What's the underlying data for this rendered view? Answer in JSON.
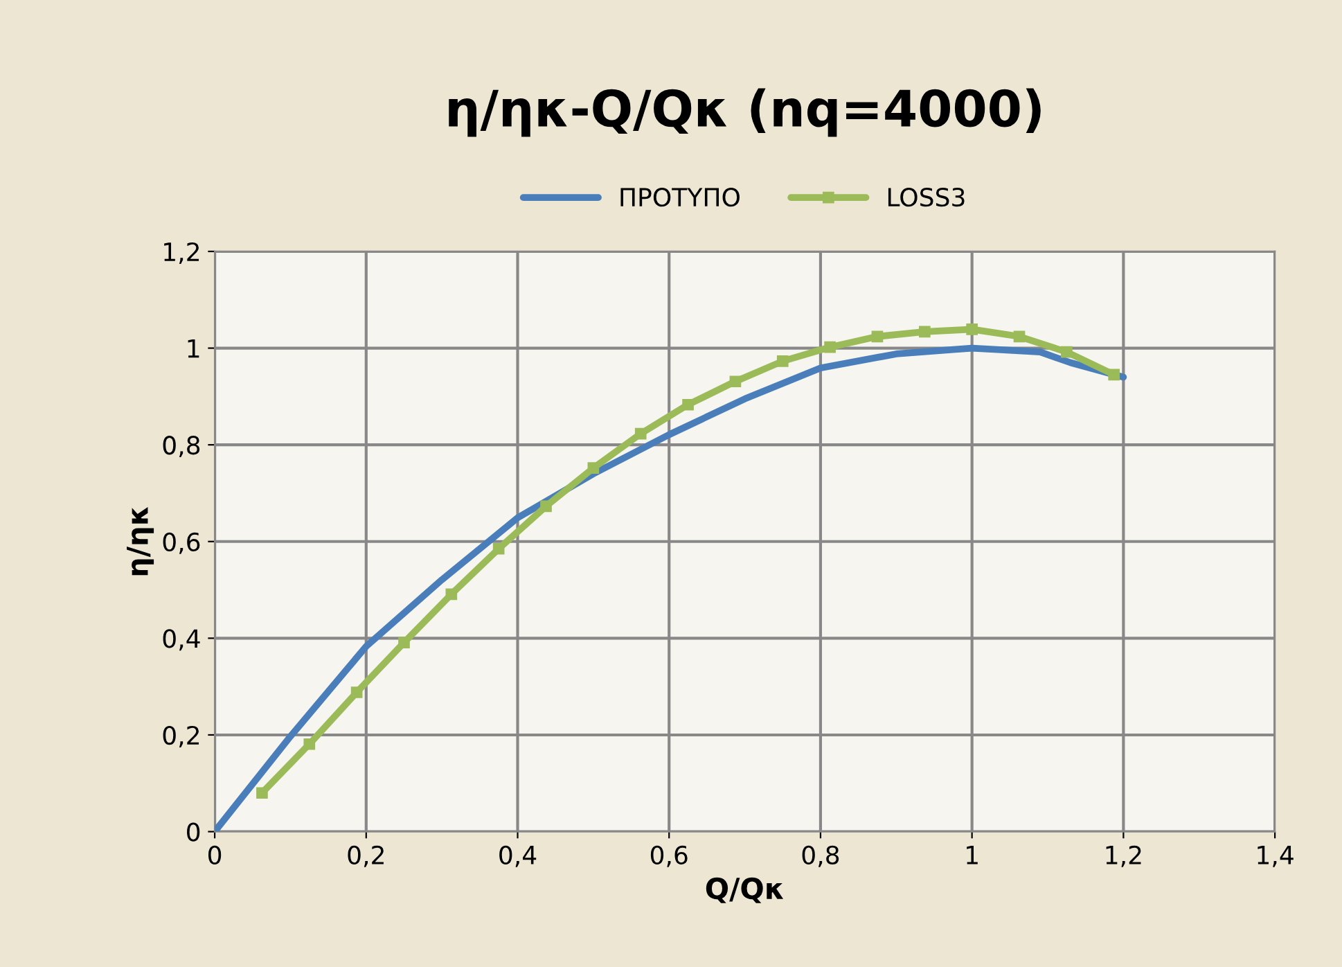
{
  "chart_data": {
    "type": "line",
    "title": "η/ηκ-Q/Qκ (nq=4000)",
    "xlabel": "Q/Qκ",
    "ylabel": "η/ηκ",
    "xlim": [
      0,
      1.4
    ],
    "ylim": [
      0,
      1.2
    ],
    "xticks": [
      0,
      {
        "value": 0.2,
        "label": "0,2"
      },
      {
        "value": 0.4,
        "label": "0,4"
      },
      {
        "value": 0.6,
        "label": "0,6"
      },
      {
        "value": 0.8,
        "label": "0,8"
      },
      1,
      {
        "value": 1.2,
        "label": "1,2"
      },
      {
        "value": 1.4,
        "label": "1,4"
      }
    ],
    "yticks": [
      0,
      {
        "value": 0.2,
        "label": "0,2"
      },
      {
        "value": 0.4,
        "label": "0,4"
      },
      {
        "value": 0.6,
        "label": "0,6"
      },
      {
        "value": 0.8,
        "label": "0,8"
      },
      1,
      {
        "value": 1.2,
        "label": "1,2"
      }
    ],
    "grid": true,
    "legend": "top",
    "series": [
      {
        "name": "ΠΡΟΤΥΠΟ",
        "color": "#4a7ebb",
        "marker": "none",
        "x": [
          0,
          0.1,
          0.2,
          0.3,
          0.4,
          0.5,
          0.6,
          0.7,
          0.8,
          0.9,
          1.0,
          1.09,
          1.13,
          1.2
        ],
        "values": [
          0,
          0.197,
          0.383,
          0.521,
          0.649,
          0.74,
          0.821,
          0.895,
          0.959,
          0.988,
          1.0,
          0.992,
          0.97,
          0.94
        ]
      },
      {
        "name": "LOSS3",
        "color": "#9bbb59",
        "marker": "square",
        "x": [
          0.0625,
          0.125,
          0.1875,
          0.25,
          0.3125,
          0.375,
          0.4375,
          0.5,
          0.5625,
          0.625,
          0.6875,
          0.75,
          0.8125,
          0.875,
          0.9375,
          1.0,
          1.0625,
          1.125,
          1.1875
        ],
        "values": [
          0.08,
          0.181,
          0.288,
          0.391,
          0.491,
          0.585,
          0.673,
          0.752,
          0.823,
          0.883,
          0.931,
          0.973,
          1.002,
          1.024,
          1.034,
          1.039,
          1.024,
          0.992,
          0.945
        ]
      }
    ]
  }
}
